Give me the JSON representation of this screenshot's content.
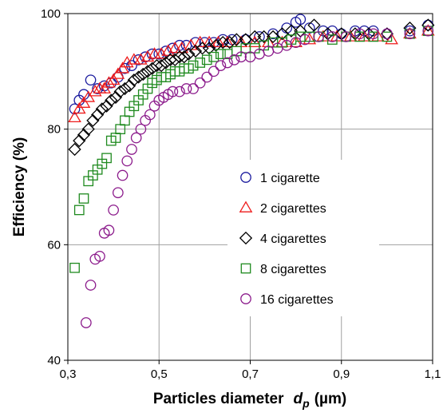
{
  "chart_data": {
    "type": "scatter",
    "xlabel_main": "Particles diameter",
    "xlabel_sym": "d",
    "xlabel_sub": "p",
    "xlabel_unit": "(µm)",
    "ylabel": "Efficiency  (%)",
    "xlim": [
      0.3,
      1.1
    ],
    "ylim": [
      40,
      100
    ],
    "x_ticks": [
      0.3,
      0.5,
      0.7,
      0.9,
      1.1
    ],
    "x_tick_labels": [
      "0,3",
      "0,5",
      "0,7",
      "0,9",
      "1,1"
    ],
    "y_ticks": [
      40,
      60,
      80,
      100
    ],
    "y_tick_labels": [
      "40",
      "60",
      "80",
      "100"
    ],
    "grid": true,
    "legend_position": "center-right",
    "series": [
      {
        "name": "1 cigarette",
        "marker": "circle",
        "color": "#1a1a9e",
        "points": [
          [
            0.315,
            83.5
          ],
          [
            0.325,
            85
          ],
          [
            0.335,
            86
          ],
          [
            0.35,
            88.5
          ],
          [
            0.365,
            87
          ],
          [
            0.38,
            87.5
          ],
          [
            0.395,
            88
          ],
          [
            0.41,
            89
          ],
          [
            0.425,
            90.5
          ],
          [
            0.44,
            91
          ],
          [
            0.455,
            92
          ],
          [
            0.47,
            92.5
          ],
          [
            0.485,
            93
          ],
          [
            0.5,
            93
          ],
          [
            0.515,
            93.5
          ],
          [
            0.53,
            94
          ],
          [
            0.545,
            94.5
          ],
          [
            0.56,
            94.5
          ],
          [
            0.58,
            95
          ],
          [
            0.6,
            95
          ],
          [
            0.62,
            95
          ],
          [
            0.64,
            95.5
          ],
          [
            0.66,
            95.5
          ],
          [
            0.69,
            95.5
          ],
          [
            0.72,
            96
          ],
          [
            0.75,
            96.5
          ],
          [
            0.78,
            97.5
          ],
          [
            0.8,
            98.5
          ],
          [
            0.81,
            99
          ],
          [
            0.83,
            97.5
          ],
          [
            0.86,
            97
          ],
          [
            0.88,
            97
          ],
          [
            0.9,
            96.5
          ],
          [
            0.93,
            97
          ],
          [
            0.95,
            97
          ],
          [
            0.97,
            97
          ],
          [
            1.0,
            96.5
          ],
          [
            1.05,
            97
          ],
          [
            1.09,
            98
          ]
        ]
      },
      {
        "name": "2 cigarettes",
        "marker": "triangle",
        "color": "#ee1c1c",
        "points": [
          [
            0.315,
            82
          ],
          [
            0.325,
            83.5
          ],
          [
            0.335,
            84.5
          ],
          [
            0.345,
            85.5
          ],
          [
            0.36,
            86.5
          ],
          [
            0.37,
            87
          ],
          [
            0.38,
            87
          ],
          [
            0.39,
            88
          ],
          [
            0.4,
            88.5
          ],
          [
            0.41,
            89.5
          ],
          [
            0.42,
            90.5
          ],
          [
            0.43,
            91.5
          ],
          [
            0.445,
            92
          ],
          [
            0.46,
            92
          ],
          [
            0.475,
            92.5
          ],
          [
            0.49,
            93
          ],
          [
            0.505,
            93
          ],
          [
            0.52,
            93.5
          ],
          [
            0.535,
            94
          ],
          [
            0.55,
            94
          ],
          [
            0.57,
            94.5
          ],
          [
            0.59,
            95
          ],
          [
            0.61,
            95
          ],
          [
            0.63,
            95
          ],
          [
            0.65,
            95
          ],
          [
            0.68,
            95
          ],
          [
            0.71,
            95
          ],
          [
            0.74,
            95
          ],
          [
            0.77,
            95
          ],
          [
            0.8,
            95
          ],
          [
            0.83,
            95.5
          ],
          [
            0.86,
            96
          ],
          [
            0.89,
            96
          ],
          [
            0.92,
            96
          ],
          [
            0.95,
            96
          ],
          [
            0.98,
            96
          ],
          [
            1.01,
            95.5
          ],
          [
            1.05,
            96.5
          ],
          [
            1.09,
            97
          ]
        ]
      },
      {
        "name": "4 cigarettes",
        "marker": "diamond",
        "color": "#000000",
        "points": [
          [
            0.315,
            76.5
          ],
          [
            0.325,
            78
          ],
          [
            0.335,
            79
          ],
          [
            0.345,
            80
          ],
          [
            0.355,
            81.5
          ],
          [
            0.365,
            82.5
          ],
          [
            0.375,
            83.5
          ],
          [
            0.385,
            84
          ],
          [
            0.395,
            85
          ],
          [
            0.405,
            85.5
          ],
          [
            0.415,
            86.5
          ],
          [
            0.425,
            87
          ],
          [
            0.435,
            87.5
          ],
          [
            0.445,
            88.5
          ],
          [
            0.455,
            89
          ],
          [
            0.465,
            89.5
          ],
          [
            0.475,
            90
          ],
          [
            0.485,
            90.5
          ],
          [
            0.495,
            91
          ],
          [
            0.505,
            91
          ],
          [
            0.515,
            91.5
          ],
          [
            0.525,
            92
          ],
          [
            0.535,
            92
          ],
          [
            0.545,
            92.5
          ],
          [
            0.555,
            92.5
          ],
          [
            0.565,
            93
          ],
          [
            0.58,
            93.5
          ],
          [
            0.595,
            94
          ],
          [
            0.61,
            94
          ],
          [
            0.625,
            94.5
          ],
          [
            0.64,
            95
          ],
          [
            0.655,
            95
          ],
          [
            0.67,
            95.5
          ],
          [
            0.69,
            95.5
          ],
          [
            0.71,
            96
          ],
          [
            0.73,
            96
          ],
          [
            0.75,
            96
          ],
          [
            0.77,
            96.5
          ],
          [
            0.79,
            97
          ],
          [
            0.81,
            97
          ],
          [
            0.84,
            98
          ],
          [
            0.87,
            96.5
          ],
          [
            0.9,
            96.5
          ],
          [
            0.93,
            96.5
          ],
          [
            0.96,
            96.5
          ],
          [
            1.0,
            96.5
          ],
          [
            1.05,
            97.5
          ],
          [
            1.09,
            98
          ]
        ]
      },
      {
        "name": "8 cigarettes",
        "marker": "square",
        "color": "#1f8a1f",
        "points": [
          [
            0.315,
            56
          ],
          [
            0.325,
            66
          ],
          [
            0.335,
            68
          ],
          [
            0.345,
            71
          ],
          [
            0.355,
            72
          ],
          [
            0.365,
            73
          ],
          [
            0.375,
            74
          ],
          [
            0.385,
            75
          ],
          [
            0.395,
            78
          ],
          [
            0.405,
            78.5
          ],
          [
            0.415,
            80
          ],
          [
            0.425,
            81.5
          ],
          [
            0.435,
            83
          ],
          [
            0.445,
            84
          ],
          [
            0.455,
            85
          ],
          [
            0.465,
            86
          ],
          [
            0.475,
            87
          ],
          [
            0.485,
            88
          ],
          [
            0.495,
            88.5
          ],
          [
            0.505,
            89
          ],
          [
            0.515,
            89
          ],
          [
            0.525,
            89.5
          ],
          [
            0.535,
            90
          ],
          [
            0.545,
            90
          ],
          [
            0.555,
            90.5
          ],
          [
            0.565,
            90.5
          ],
          [
            0.575,
            91
          ],
          [
            0.59,
            91.5
          ],
          [
            0.605,
            92
          ],
          [
            0.62,
            92.5
          ],
          [
            0.635,
            93
          ],
          [
            0.65,
            93
          ],
          [
            0.67,
            93.5
          ],
          [
            0.69,
            94
          ],
          [
            0.71,
            94
          ],
          [
            0.73,
            94.5
          ],
          [
            0.75,
            95
          ],
          [
            0.77,
            95
          ],
          [
            0.79,
            95.5
          ],
          [
            0.81,
            96
          ],
          [
            0.83,
            96
          ],
          [
            0.85,
            96
          ],
          [
            0.88,
            95.5
          ],
          [
            0.91,
            96
          ],
          [
            0.94,
            96
          ],
          [
            0.97,
            96
          ],
          [
            1.0,
            96
          ],
          [
            1.05,
            96.5
          ],
          [
            1.09,
            97
          ]
        ]
      },
      {
        "name": "16 cigarettes",
        "marker": "circle",
        "color": "#8b1a8b",
        "points": [
          [
            0.34,
            46.5
          ],
          [
            0.35,
            53
          ],
          [
            0.36,
            57.5
          ],
          [
            0.37,
            58
          ],
          [
            0.38,
            62
          ],
          [
            0.39,
            62.5
          ],
          [
            0.4,
            66
          ],
          [
            0.41,
            69
          ],
          [
            0.42,
            72
          ],
          [
            0.43,
            74.5
          ],
          [
            0.44,
            76.5
          ],
          [
            0.45,
            78.5
          ],
          [
            0.46,
            80
          ],
          [
            0.47,
            81.5
          ],
          [
            0.48,
            82.5
          ],
          [
            0.49,
            84
          ],
          [
            0.5,
            85
          ],
          [
            0.51,
            85.5
          ],
          [
            0.52,
            86
          ],
          [
            0.53,
            86.5
          ],
          [
            0.545,
            86.5
          ],
          [
            0.56,
            87
          ],
          [
            0.575,
            87
          ],
          [
            0.59,
            88
          ],
          [
            0.605,
            89
          ],
          [
            0.62,
            90
          ],
          [
            0.635,
            91
          ],
          [
            0.65,
            91.5
          ],
          [
            0.665,
            92
          ],
          [
            0.68,
            92.5
          ],
          [
            0.7,
            92.5
          ],
          [
            0.72,
            93
          ],
          [
            0.74,
            93.5
          ],
          [
            0.76,
            94
          ],
          [
            0.78,
            94.5
          ],
          [
            0.8,
            95
          ],
          [
            0.82,
            95.5
          ],
          [
            0.85,
            96
          ],
          [
            0.88,
            96
          ],
          [
            0.91,
            96
          ],
          [
            0.94,
            96.5
          ],
          [
            0.97,
            96.5
          ],
          [
            1.0,
            96.5
          ],
          [
            1.05,
            96.5
          ],
          [
            1.09,
            97
          ]
        ]
      }
    ]
  }
}
